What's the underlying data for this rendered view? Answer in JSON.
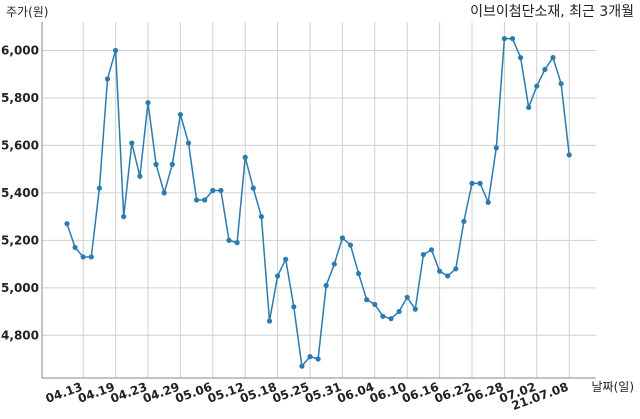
{
  "chart_data": {
    "type": "line",
    "title": "이브이첨단소재, 최근 3개월",
    "ylabel": "주가(원)",
    "xlabel": "날짜(일)",
    "ylim": [
      4620,
      6120
    ],
    "yticks": [
      4800,
      5000,
      5200,
      5400,
      5600,
      5800,
      6000
    ],
    "ytick_labels": [
      "4,800",
      "5,000",
      "5,200",
      "5,400",
      "5,600",
      "5,800",
      "6,000"
    ],
    "xticks": [
      {
        "index": 2,
        "label": "04.13"
      },
      {
        "index": 6,
        "label": "04.19"
      },
      {
        "index": 10,
        "label": "04.23"
      },
      {
        "index": 14,
        "label": "04.29"
      },
      {
        "index": 18,
        "label": "05.06"
      },
      {
        "index": 22,
        "label": "05.12"
      },
      {
        "index": 26,
        "label": "05.18"
      },
      {
        "index": 30,
        "label": "05.25"
      },
      {
        "index": 34,
        "label": "05.31"
      },
      {
        "index": 38,
        "label": "06.04"
      },
      {
        "index": 42,
        "label": "06.10"
      },
      {
        "index": 46,
        "label": "06.16"
      },
      {
        "index": 50,
        "label": "06.22"
      },
      {
        "index": 54,
        "label": "06.28"
      },
      {
        "index": 58,
        "label": "07.02"
      },
      {
        "index": 62,
        "label": "21.07.08"
      }
    ],
    "grid": true,
    "color": "#2b7bb0",
    "series": [
      {
        "values": [
          5270,
          5170,
          5130,
          5130,
          5420,
          5880,
          6000,
          5300,
          5610,
          5470,
          5780,
          5520,
          5400,
          5520,
          5730,
          5610,
          5370,
          5370,
          5410,
          5410,
          5200,
          5190,
          5550,
          5420,
          5300,
          4860,
          5050,
          5120,
          4920,
          4670,
          4710,
          4700,
          5010,
          5100,
          5210,
          5180,
          5060,
          4950,
          4930,
          4880,
          4870,
          4900,
          4960,
          4910,
          5140,
          5160,
          5070,
          5050,
          5080,
          5280,
          5440,
          5440,
          5360,
          5590,
          6050,
          6050,
          5970,
          5760,
          5850,
          5920,
          5970,
          5860,
          5560
        ]
      }
    ]
  }
}
